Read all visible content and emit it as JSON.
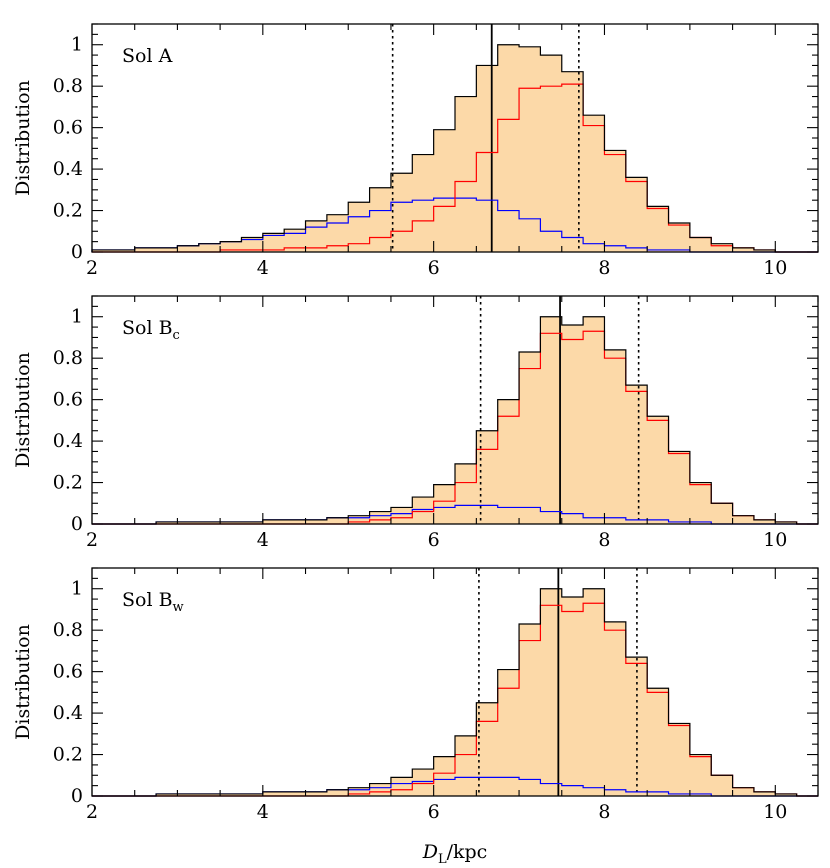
{
  "chart_data": {
    "type": "histogram",
    "xlabel_main": "D",
    "xlabel_sub": "L",
    "xlabel_unit": "/kpc",
    "xlim": [
      2,
      10.5
    ],
    "ylim": [
      0,
      1.1
    ],
    "x_ticks": [
      "2",
      "4",
      "6",
      "8",
      "10"
    ],
    "y_ticks": [
      "0",
      "0.2",
      "0.4",
      "0.6",
      "0.8",
      "1"
    ],
    "bin_edges": [
      2.0,
      2.25,
      2.5,
      2.75,
      3.0,
      3.25,
      3.5,
      3.75,
      4.0,
      4.25,
      4.5,
      4.75,
      5.0,
      5.25,
      5.5,
      5.75,
      6.0,
      6.25,
      6.5,
      6.75,
      7.0,
      7.25,
      7.5,
      7.75,
      8.0,
      8.25,
      8.5,
      8.75,
      9.0,
      9.25,
      9.5,
      9.75,
      10.0,
      10.25,
      10.5
    ],
    "colors": {
      "total_fill": "#fcd9a8",
      "total_edge": "#000000",
      "red": "#ff0000",
      "blue": "#0000ff"
    },
    "panels": [
      {
        "label_main": "Sol A",
        "label_sub": "",
        "ylabel": "Distribution",
        "median": 6.68,
        "interval": [
          5.52,
          7.7
        ],
        "series": [
          {
            "color": "red",
            "values": [
              0,
              0,
              0,
              0,
              0,
              0,
              0.01,
              0.01,
              0.01,
              0.02,
              0.02,
              0.03,
              0.04,
              0.07,
              0.1,
              0.15,
              0.22,
              0.34,
              0.48,
              0.64,
              0.79,
              0.8,
              0.81,
              0.61,
              0.47,
              0.34,
              0.21,
              0.13,
              0.07,
              0.03,
              0.02,
              0.01,
              0.0,
              0.0
            ]
          },
          {
            "color": "blue",
            "values": [
              0.01,
              0.01,
              0.02,
              0.02,
              0.03,
              0.04,
              0.05,
              0.06,
              0.08,
              0.09,
              0.12,
              0.14,
              0.17,
              0.2,
              0.24,
              0.25,
              0.26,
              0.26,
              0.25,
              0.2,
              0.16,
              0.1,
              0.07,
              0.04,
              0.03,
              0.02,
              0.01,
              0.01,
              0.0,
              0.0,
              0.0,
              0.0,
              0.0,
              0.0
            ]
          },
          {
            "color": "total",
            "values": [
              0.01,
              0.01,
              0.02,
              0.02,
              0.03,
              0.04,
              0.05,
              0.07,
              0.09,
              0.11,
              0.15,
              0.18,
              0.24,
              0.31,
              0.38,
              0.47,
              0.59,
              0.75,
              0.9,
              1.0,
              0.99,
              0.95,
              0.87,
              0.66,
              0.49,
              0.36,
              0.22,
              0.14,
              0.07,
              0.04,
              0.02,
              0.01,
              0.0,
              0.0
            ]
          }
        ]
      },
      {
        "label_main": "Sol B",
        "label_sub": "c",
        "ylabel": "Distribution",
        "median": 7.48,
        "interval": [
          6.55,
          8.4
        ],
        "series": [
          {
            "color": "red",
            "values": [
              0,
              0,
              0,
              0,
              0,
              0,
              0,
              0,
              0,
              0,
              0,
              0,
              0.01,
              0.02,
              0.03,
              0.06,
              0.11,
              0.2,
              0.36,
              0.52,
              0.75,
              0.92,
              0.89,
              0.93,
              0.8,
              0.64,
              0.5,
              0.34,
              0.19,
              0.1,
              0.04,
              0.02,
              0.01,
              0.0
            ]
          },
          {
            "color": "blue",
            "values": [
              0,
              0,
              0,
              0.01,
              0.01,
              0.01,
              0.01,
              0.01,
              0.02,
              0.02,
              0.02,
              0.03,
              0.03,
              0.04,
              0.05,
              0.07,
              0.08,
              0.09,
              0.09,
              0.08,
              0.08,
              0.06,
              0.05,
              0.03,
              0.03,
              0.02,
              0.02,
              0.01,
              0.01,
              0.0,
              0.0,
              0.0,
              0.0,
              0.0
            ]
          },
          {
            "color": "total",
            "values": [
              0,
              0,
              0,
              0.01,
              0.01,
              0.01,
              0.01,
              0.01,
              0.02,
              0.02,
              0.02,
              0.03,
              0.04,
              0.06,
              0.08,
              0.13,
              0.19,
              0.29,
              0.45,
              0.6,
              0.83,
              1.0,
              0.96,
              1.0,
              0.84,
              0.67,
              0.52,
              0.35,
              0.2,
              0.1,
              0.04,
              0.02,
              0.01,
              0.0
            ]
          }
        ]
      },
      {
        "label_main": "Sol B",
        "label_sub": "w",
        "ylabel": "Distribution",
        "median": 7.46,
        "interval": [
          6.53,
          8.38
        ],
        "series": [
          {
            "color": "red",
            "values": [
              0,
              0,
              0,
              0,
              0,
              0,
              0,
              0,
              0,
              0,
              0,
              0,
              0.01,
              0.02,
              0.03,
              0.06,
              0.11,
              0.2,
              0.36,
              0.52,
              0.75,
              0.92,
              0.89,
              0.93,
              0.8,
              0.64,
              0.5,
              0.34,
              0.19,
              0.1,
              0.04,
              0.02,
              0.01,
              0.0
            ]
          },
          {
            "color": "blue",
            "values": [
              0,
              0,
              0,
              0.01,
              0.01,
              0.01,
              0.01,
              0.01,
              0.02,
              0.02,
              0.02,
              0.03,
              0.03,
              0.04,
              0.06,
              0.07,
              0.08,
              0.09,
              0.09,
              0.09,
              0.08,
              0.06,
              0.05,
              0.04,
              0.03,
              0.02,
              0.02,
              0.01,
              0.01,
              0.0,
              0.0,
              0.0,
              0.0,
              0.0
            ]
          },
          {
            "color": "total",
            "values": [
              0,
              0,
              0,
              0.01,
              0.01,
              0.01,
              0.01,
              0.01,
              0.02,
              0.02,
              0.02,
              0.03,
              0.04,
              0.06,
              0.09,
              0.13,
              0.19,
              0.29,
              0.45,
              0.61,
              0.83,
              1.0,
              0.96,
              1.0,
              0.84,
              0.67,
              0.52,
              0.35,
              0.2,
              0.1,
              0.04,
              0.02,
              0.01,
              0.0
            ]
          }
        ]
      }
    ]
  }
}
